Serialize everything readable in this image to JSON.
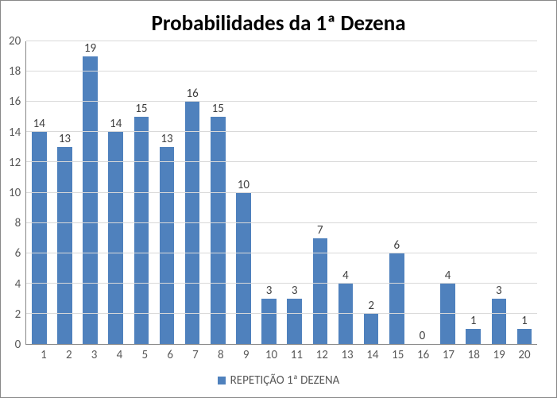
{
  "chart": {
    "type": "bar",
    "title": "Probabilidades da 1ª Dezena",
    "title_fontsize": 27,
    "title_fontweight": "bold",
    "categories": [
      "1",
      "2",
      "3",
      "4",
      "5",
      "6",
      "7",
      "8",
      "9",
      "10",
      "11",
      "12",
      "13",
      "14",
      "15",
      "16",
      "17",
      "18",
      "19",
      "20"
    ],
    "values": [
      14,
      13,
      19,
      14,
      15,
      13,
      16,
      15,
      10,
      3,
      3,
      7,
      4,
      2,
      6,
      0,
      4,
      1,
      3,
      1
    ],
    "bar_color": "#4f81bd",
    "background_color": "#ffffff",
    "grid_color": "#d9d9d9",
    "axis_color": "#888888",
    "tick_label_color": "#595959",
    "value_label_color": "#404040",
    "ylim": [
      0,
      20
    ],
    "ytick_step": 2,
    "yticks": [
      20,
      18,
      16,
      14,
      12,
      10,
      8,
      6,
      4,
      2,
      0
    ],
    "label_fontsize": 15,
    "bar_width": 0.58,
    "border_color": "#888888",
    "legend": {
      "label": "REPETIÇÃO 1ª DEZENA",
      "swatch_color": "#4f81bd",
      "position": "bottom"
    }
  }
}
